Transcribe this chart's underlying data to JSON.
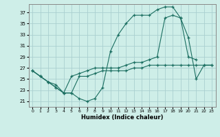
{
  "xlabel": "Humidex (Indice chaleur)",
  "background_color": "#ceeee8",
  "grid_color": "#aacfcf",
  "line_color": "#1a6e60",
  "xlim": [
    -0.5,
    23.5
  ],
  "ylim": [
    20.0,
    38.5
  ],
  "yticks": [
    21,
    23,
    25,
    27,
    29,
    31,
    33,
    35,
    37
  ],
  "xticks": [
    0,
    1,
    2,
    3,
    4,
    5,
    6,
    7,
    8,
    9,
    10,
    11,
    12,
    13,
    14,
    15,
    16,
    17,
    18,
    19,
    20,
    21,
    22,
    23
  ],
  "line1_x": [
    0,
    1,
    2,
    3,
    4,
    5,
    6,
    7,
    8,
    9,
    10,
    11,
    12,
    13,
    14,
    15,
    16,
    17,
    18,
    19,
    20,
    21
  ],
  "line1_y": [
    26.5,
    25.5,
    24.5,
    23.5,
    22.5,
    22.5,
    21.5,
    21.0,
    21.5,
    23.5,
    30.0,
    33.0,
    35.0,
    36.5,
    36.5,
    36.5,
    37.5,
    38.0,
    38.0,
    36.0,
    29.0,
    28.5
  ],
  "line2_x": [
    0,
    1,
    2,
    3,
    4,
    5,
    6,
    7,
    8,
    9,
    10,
    11,
    12,
    13,
    14,
    15,
    16,
    17,
    18,
    19,
    20,
    21,
    22,
    23
  ],
  "line2_y": [
    26.5,
    25.5,
    24.5,
    23.5,
    22.5,
    25.5,
    26.0,
    26.5,
    27.0,
    27.0,
    27.0,
    27.0,
    27.5,
    28.0,
    28.0,
    28.5,
    29.0,
    36.0,
    36.5,
    36.0,
    32.5,
    25.0,
    27.5,
    27.5
  ],
  "line3_x": [
    0,
    1,
    2,
    3,
    4,
    5,
    6,
    7,
    8,
    9,
    10,
    11,
    12,
    13,
    14,
    15,
    16,
    17,
    18,
    19,
    20,
    21,
    22,
    23
  ],
  "line3_y": [
    26.5,
    25.5,
    24.5,
    24.0,
    22.5,
    22.5,
    25.5,
    25.5,
    26.0,
    26.5,
    26.5,
    26.5,
    26.5,
    27.0,
    27.0,
    27.5,
    27.5,
    27.5,
    27.5,
    27.5,
    27.5,
    27.5,
    27.5,
    27.5
  ]
}
